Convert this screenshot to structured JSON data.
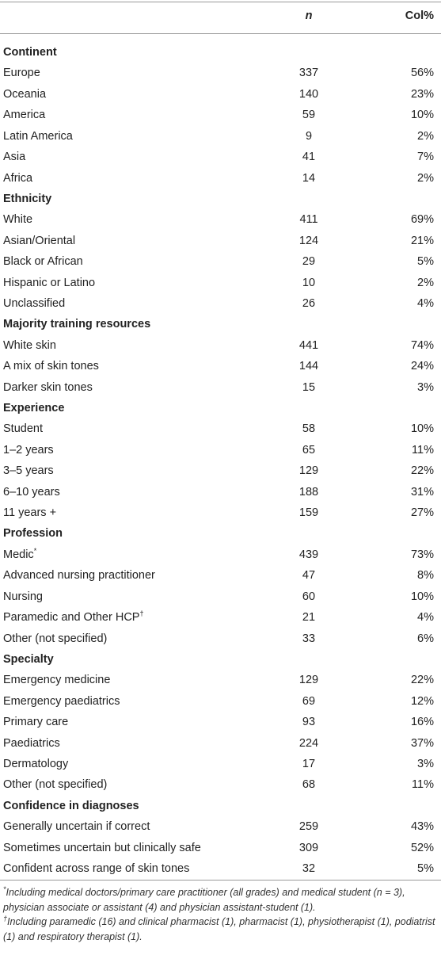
{
  "header": {
    "n": "n",
    "col": "Col%"
  },
  "sections": [
    {
      "title": "Continent",
      "rows": [
        {
          "label": "Europe",
          "n": 337,
          "pct": "56%"
        },
        {
          "label": "Oceania",
          "n": 140,
          "pct": "23%"
        },
        {
          "label": "America",
          "n": 59,
          "pct": "10%"
        },
        {
          "label": "Latin America",
          "n": 9,
          "pct": "2%"
        },
        {
          "label": "Asia",
          "n": 41,
          "pct": "7%"
        },
        {
          "label": "Africa",
          "n": 14,
          "pct": "2%"
        }
      ]
    },
    {
      "title": "Ethnicity",
      "rows": [
        {
          "label": "White",
          "n": 411,
          "pct": "69%"
        },
        {
          "label": "Asian/Oriental",
          "n": 124,
          "pct": "21%"
        },
        {
          "label": "Black or African",
          "n": 29,
          "pct": "5%"
        },
        {
          "label": "Hispanic or Latino",
          "n": 10,
          "pct": "2%"
        },
        {
          "label": "Unclassified",
          "n": 26,
          "pct": "4%"
        }
      ]
    },
    {
      "title": "Majority training resources",
      "rows": [
        {
          "label": "White skin",
          "n": 441,
          "pct": "74%"
        },
        {
          "label": "A mix of skin tones",
          "n": 144,
          "pct": "24%"
        },
        {
          "label": "Darker skin tones",
          "n": 15,
          "pct": "3%"
        }
      ]
    },
    {
      "title": "Experience",
      "rows": [
        {
          "label": "Student",
          "n": 58,
          "pct": "10%"
        },
        {
          "label": "1–2 years",
          "n": 65,
          "pct": "11%"
        },
        {
          "label": "3–5 years",
          "n": 129,
          "pct": "22%"
        },
        {
          "label": "6–10 years",
          "n": 188,
          "pct": "31%"
        },
        {
          "label": "11 years +",
          "n": 159,
          "pct": "27%"
        }
      ]
    },
    {
      "title": "Profession",
      "rows": [
        {
          "label": "Medic",
          "sup": "*",
          "n": 439,
          "pct": "73%"
        },
        {
          "label": "Advanced nursing practitioner",
          "n": 47,
          "pct": "8%"
        },
        {
          "label": "Nursing",
          "n": 60,
          "pct": "10%"
        },
        {
          "label": "Paramedic and Other HCP",
          "sup": "†",
          "n": 21,
          "pct": "4%"
        },
        {
          "label": "Other (not specified)",
          "n": 33,
          "pct": "6%"
        }
      ]
    },
    {
      "title": "Specialty",
      "rows": [
        {
          "label": "Emergency medicine",
          "n": 129,
          "pct": "22%"
        },
        {
          "label": "Emergency paediatrics",
          "n": 69,
          "pct": "12%"
        },
        {
          "label": "Primary care",
          "n": 93,
          "pct": "16%"
        },
        {
          "label": "Paediatrics",
          "n": 224,
          "pct": "37%"
        },
        {
          "label": "Dermatology",
          "n": 17,
          "pct": "3%"
        },
        {
          "label": "Other (not specified)",
          "n": 68,
          "pct": "11%"
        }
      ]
    },
    {
      "title": "Confidence in diagnoses",
      "rows": [
        {
          "label": "Generally uncertain if correct",
          "n": 259,
          "pct": "43%"
        },
        {
          "label": "Sometimes uncertain but clinically safe",
          "n": 309,
          "pct": "52%"
        },
        {
          "label": "Confident across range of skin tones",
          "n": 32,
          "pct": "5%"
        }
      ]
    }
  ],
  "footnotes": [
    {
      "mark": "*",
      "text": "Including medical doctors/primary care practitioner (all grades) and medical student (n = 3), physician associate or assistant (4) and physician assistant-student (1)."
    },
    {
      "mark": "†",
      "text": "Including paramedic (16) and clinical pharmacist (1), pharmacist (1), physiotherapist (1), podiatrist (1) and respiratory therapist (1)."
    }
  ]
}
